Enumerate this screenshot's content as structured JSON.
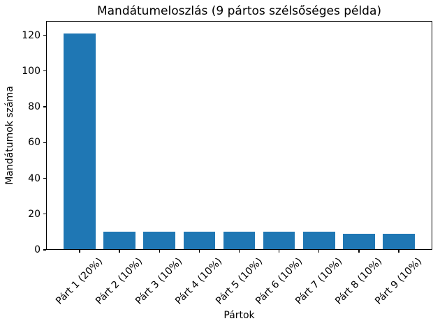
{
  "figure": {
    "background": "#ffffff",
    "text_color": "#000000"
  },
  "chart_data": {
    "type": "bar",
    "title": "Mandátumeloszlás (9 pártos szélsőséges példa)",
    "xlabel": "Pártok",
    "ylabel": "Mandátumok száma",
    "categories": [
      "Párt 1 (20%)",
      "Párt 2 (10%)",
      "Párt 3 (10%)",
      "Párt 4 (10%)",
      "Párt 5 (10%)",
      "Párt 6 (10%)",
      "Párt 7 (10%)",
      "Párt 8 (10%)",
      "Párt 9 (10%)"
    ],
    "values": [
      121,
      10,
      10,
      10,
      10,
      10,
      10,
      9,
      9
    ],
    "bar_color": "#1f77b4",
    "bar_width_fraction": 0.8,
    "ylim": [
      0,
      128
    ],
    "yticks": [
      0,
      20,
      40,
      60,
      80,
      100,
      120
    ],
    "x_tick_rotation": 45,
    "grid": false,
    "legend": null
  }
}
